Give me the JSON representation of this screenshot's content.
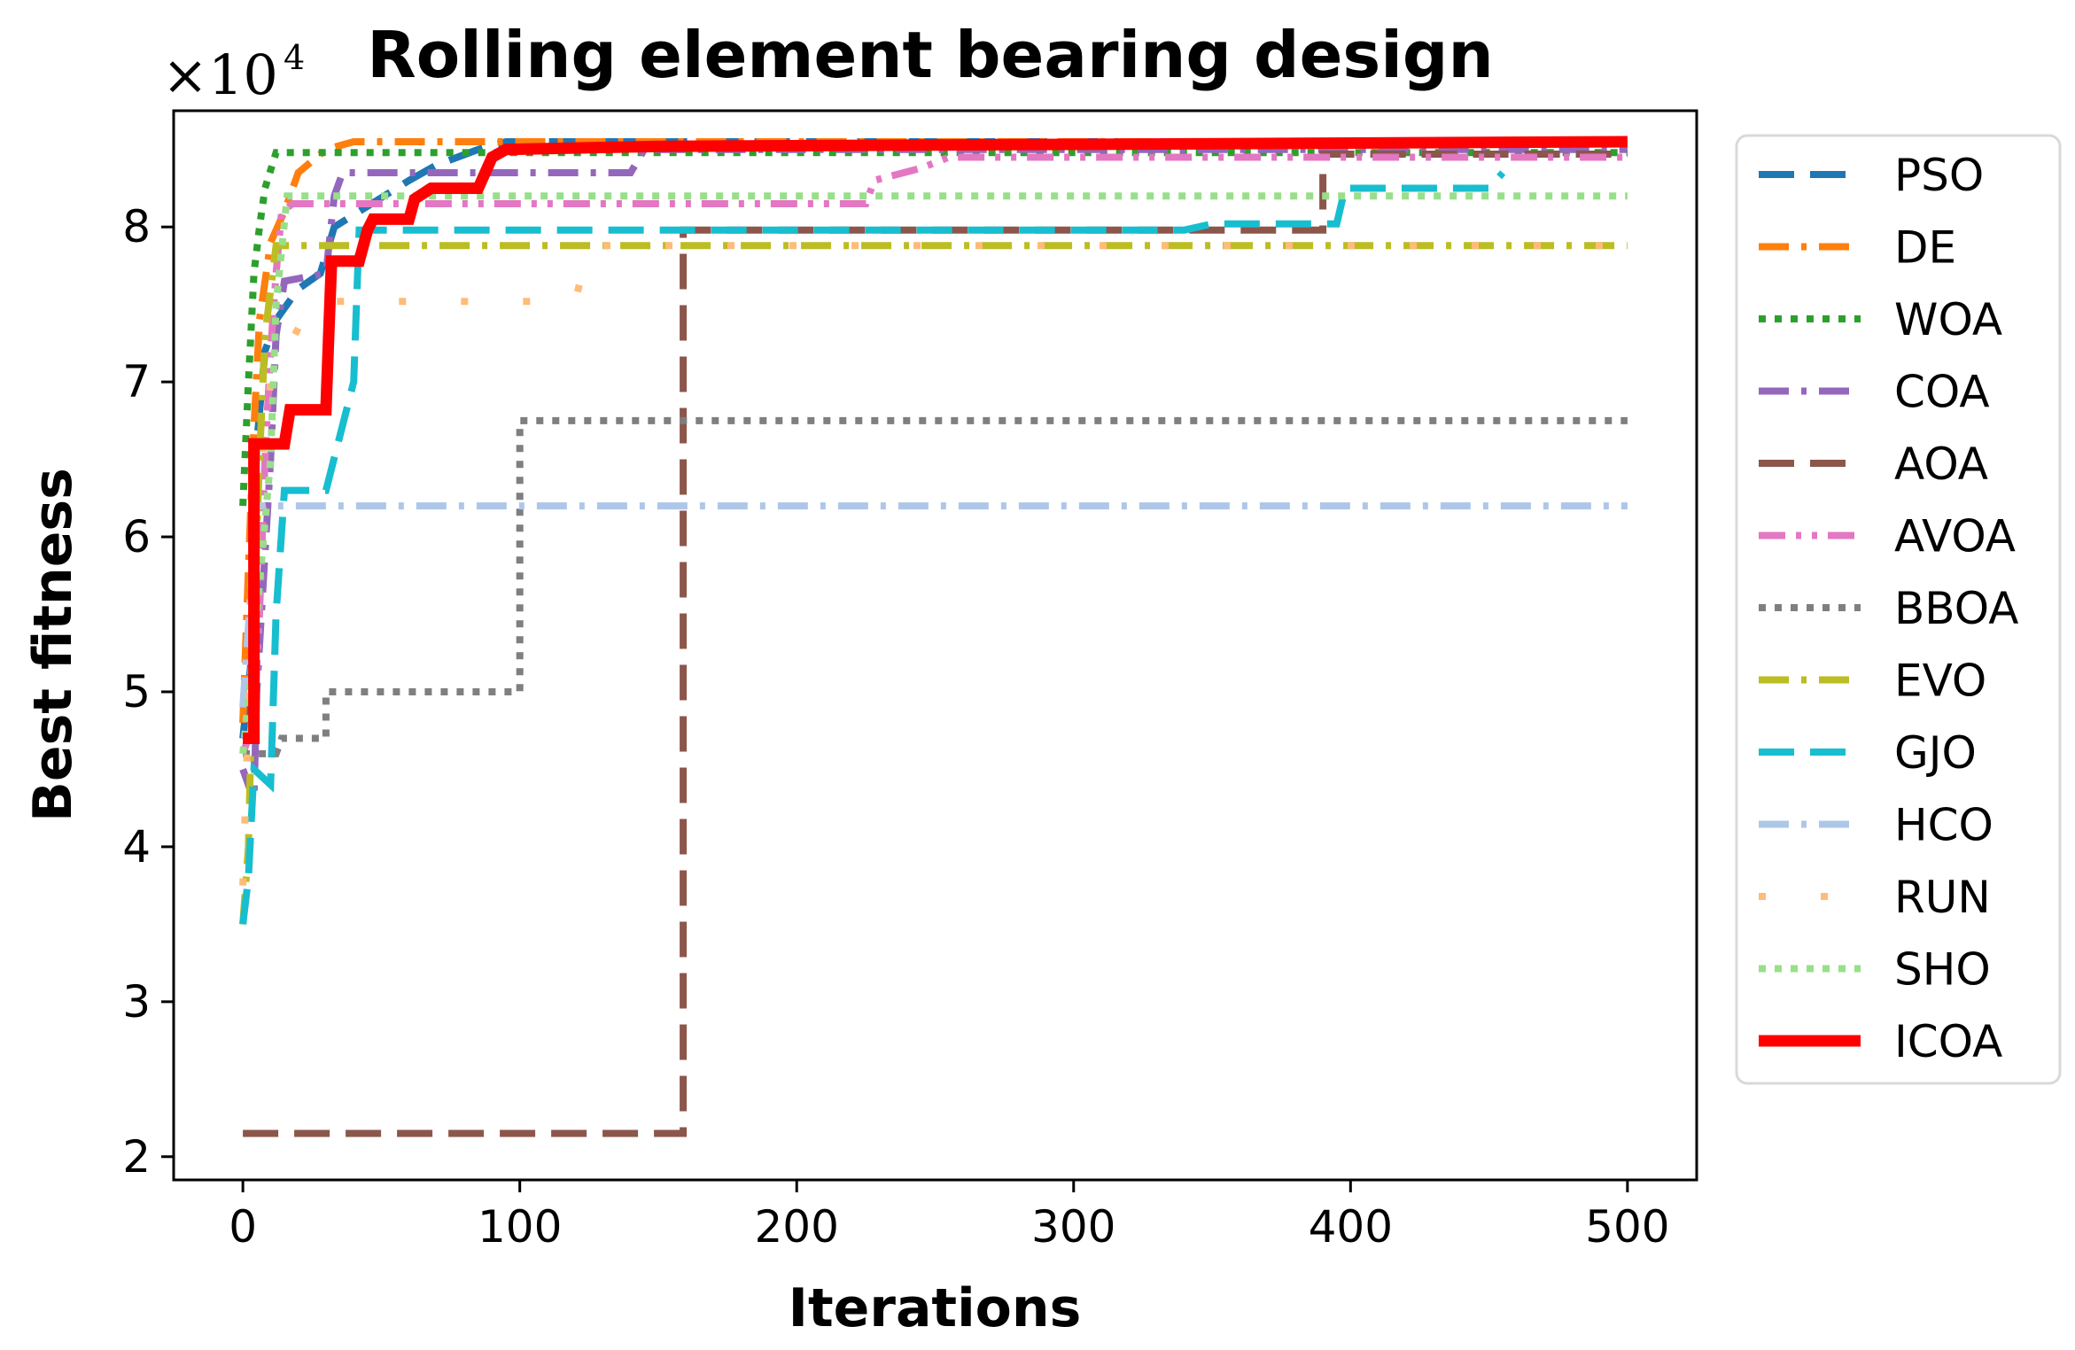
{
  "chart_data": {
    "type": "line",
    "title": "Rolling element bearing design",
    "xlabel": "Iterations",
    "ylabel": "Best fitness",
    "y_multiplier": {
      "base": "×10",
      "exponent": "4"
    },
    "xlim": [
      -25,
      525
    ],
    "ylim": [
      1.85,
      8.75
    ],
    "x_ticks": [
      0,
      100,
      200,
      300,
      400,
      500
    ],
    "y_ticks": [
      2,
      3,
      4,
      5,
      6,
      7,
      8
    ],
    "grid": false,
    "legend_position": "outside-right",
    "series": [
      {
        "name": "PSO",
        "color": "#1f77b4",
        "dash": "long-dash",
        "points": [
          [
            0,
            4.7
          ],
          [
            3,
            5.2
          ],
          [
            5,
            6.6
          ],
          [
            8,
            7.2
          ],
          [
            12,
            7.4
          ],
          [
            20,
            7.6
          ],
          [
            28,
            7.7
          ],
          [
            33,
            8.0
          ],
          [
            60,
            8.3
          ],
          [
            70,
            8.4
          ],
          [
            85,
            8.5
          ],
          [
            95,
            8.55
          ],
          [
            500,
            8.55
          ]
        ]
      },
      {
        "name": "DE",
        "color": "#ff7f0e",
        "dash": "dash-dot",
        "points": [
          [
            0,
            4.8
          ],
          [
            2,
            5.8
          ],
          [
            4,
            6.7
          ],
          [
            6,
            7.4
          ],
          [
            10,
            7.9
          ],
          [
            15,
            8.1
          ],
          [
            20,
            8.35
          ],
          [
            30,
            8.5
          ],
          [
            40,
            8.55
          ],
          [
            500,
            8.55
          ]
        ]
      },
      {
        "name": "WOA",
        "color": "#2ca02c",
        "dash": "dotted",
        "points": [
          [
            0,
            6.2
          ],
          [
            2,
            7.0
          ],
          [
            4,
            7.7
          ],
          [
            6,
            8.0
          ],
          [
            8,
            8.25
          ],
          [
            12,
            8.48
          ],
          [
            500,
            8.48
          ]
        ]
      },
      {
        "name": "COA",
        "color": "#9467bd",
        "dash": "dash-dot",
        "points": [
          [
            0,
            4.5
          ],
          [
            4,
            4.3
          ],
          [
            5,
            5.0
          ],
          [
            10,
            6.5
          ],
          [
            12,
            7.3
          ],
          [
            15,
            7.65
          ],
          [
            30,
            7.7
          ],
          [
            33,
            8.2
          ],
          [
            36,
            8.35
          ],
          [
            140,
            8.35
          ],
          [
            145,
            8.5
          ],
          [
            500,
            8.5
          ]
        ]
      },
      {
        "name": "AOA",
        "color": "#8c564b",
        "dash": "long-dash",
        "points": [
          [
            0,
            2.15
          ],
          [
            159,
            2.15
          ],
          [
            159,
            7.98
          ],
          [
            390,
            7.98
          ],
          [
            390,
            8.47
          ],
          [
            500,
            8.47
          ]
        ]
      },
      {
        "name": "AVOA",
        "color": "#e377c2",
        "dash": "dash-dot-dot",
        "points": [
          [
            0,
            4.6
          ],
          [
            4,
            4.8
          ],
          [
            6,
            5.5
          ],
          [
            8,
            6.5
          ],
          [
            10,
            7.2
          ],
          [
            12,
            7.7
          ],
          [
            14,
            8.1
          ],
          [
            18,
            8.15
          ],
          [
            225,
            8.15
          ],
          [
            228,
            8.3
          ],
          [
            245,
            8.38
          ],
          [
            255,
            8.45
          ],
          [
            500,
            8.45
          ]
        ]
      },
      {
        "name": "BBOA",
        "color": "#7f7f7f",
        "dash": "dotted",
        "points": [
          [
            0,
            4.6
          ],
          [
            12,
            4.6
          ],
          [
            14,
            4.7
          ],
          [
            30,
            4.7
          ],
          [
            30,
            5.0
          ],
          [
            100,
            5.0
          ],
          [
            100,
            6.75
          ],
          [
            500,
            6.75
          ]
        ]
      },
      {
        "name": "EVO",
        "color": "#bcbd22",
        "dash": "dash-dot",
        "points": [
          [
            0,
            3.5
          ],
          [
            2,
            4.0
          ],
          [
            4,
            5.5
          ],
          [
            6,
            6.5
          ],
          [
            8,
            7.3
          ],
          [
            12,
            7.88
          ],
          [
            500,
            7.88
          ]
        ]
      },
      {
        "name": "GJO",
        "color": "#17becf",
        "dash": "long-dash",
        "points": [
          [
            0,
            3.5
          ],
          [
            2,
            3.8
          ],
          [
            4,
            4.5
          ],
          [
            10,
            4.4
          ],
          [
            12,
            5.5
          ],
          [
            15,
            6.3
          ],
          [
            30,
            6.3
          ],
          [
            40,
            7.0
          ],
          [
            42,
            7.98
          ],
          [
            340,
            7.98
          ],
          [
            350,
            8.02
          ],
          [
            395,
            8.02
          ],
          [
            398,
            8.25
          ],
          [
            450,
            8.25
          ],
          [
            455,
            8.35
          ]
        ]
      },
      {
        "name": "HCO",
        "color": "#aec7e8",
        "dash": "dash-dot",
        "points": [
          [
            0,
            4.9
          ],
          [
            5,
            6.2
          ],
          [
            500,
            6.2
          ]
        ]
      },
      {
        "name": "RUN",
        "color": "#ffbb78",
        "dash": "sparse-dot",
        "points": [
          [
            0,
            3.75
          ],
          [
            4,
            6.0
          ],
          [
            10,
            7.0
          ],
          [
            25,
            7.52
          ],
          [
            120,
            7.52
          ],
          [
            125,
            7.88
          ],
          [
            500,
            7.88
          ]
        ]
      },
      {
        "name": "SHO",
        "color": "#98df8a",
        "dash": "dotted",
        "points": [
          [
            0,
            4.6
          ],
          [
            5,
            5.5
          ],
          [
            10,
            6.5
          ],
          [
            12,
            7.5
          ],
          [
            16,
            8.2
          ],
          [
            500,
            8.2
          ]
        ]
      },
      {
        "name": "ICOA",
        "color": "#ff0000",
        "dash": "solid",
        "points": [
          [
            0,
            4.7
          ],
          [
            4,
            4.7
          ],
          [
            4,
            6.6
          ],
          [
            15,
            6.6
          ],
          [
            17,
            6.82
          ],
          [
            30,
            6.82
          ],
          [
            31,
            7.3
          ],
          [
            32,
            7.78
          ],
          [
            42,
            7.78
          ],
          [
            45,
            7.98
          ],
          [
            47,
            8.05
          ],
          [
            60,
            8.05
          ],
          [
            62,
            8.18
          ],
          [
            68,
            8.25
          ],
          [
            85,
            8.25
          ],
          [
            90,
            8.45
          ],
          [
            95,
            8.5
          ],
          [
            150,
            8.52
          ],
          [
            500,
            8.55
          ]
        ]
      }
    ]
  }
}
